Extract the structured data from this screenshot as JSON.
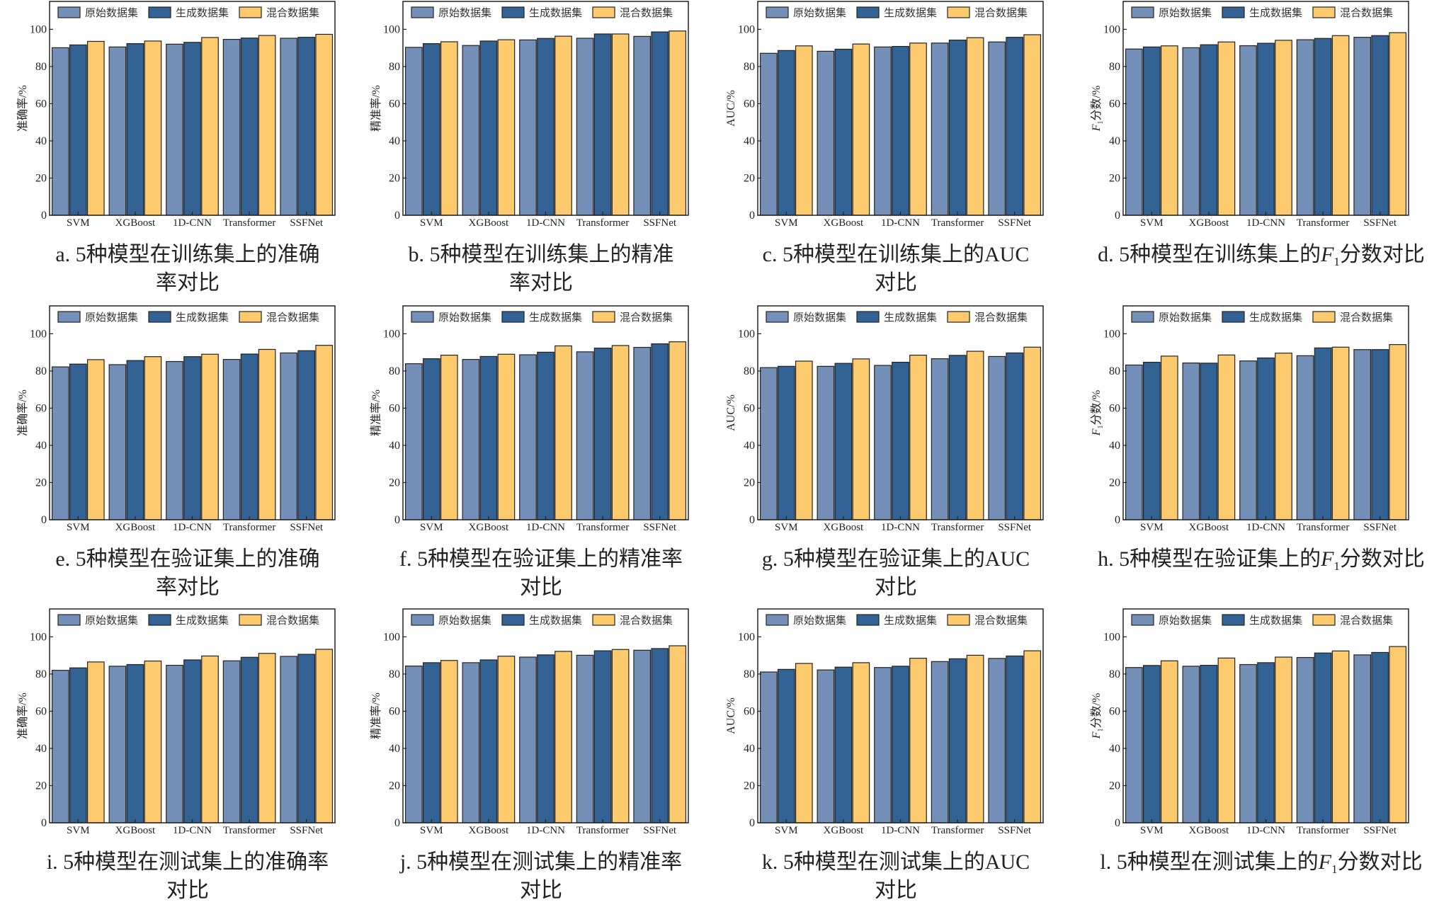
{
  "legend": [
    "原始数据集",
    "生成数据集",
    "混合数据集"
  ],
  "colors": {
    "original": "#7590b8",
    "generated": "#336394",
    "mixed": "#fdcb6e",
    "edge": "#222222"
  },
  "chart_data": [
    {
      "id": "a",
      "type": "bar",
      "ylabel": [
        {
          "t": "准确率/%"
        }
      ],
      "caption": [
        [
          {
            "t": "a. 5种模型在训练集上的准确"
          }
        ],
        [
          {
            "t": "率对比"
          }
        ]
      ],
      "categories": [
        "SVM",
        "XGBoost",
        "1D-CNN",
        "Transformer",
        "SSFNet"
      ],
      "ylim": [
        0,
        115
      ],
      "yticks": [
        0,
        20,
        40,
        60,
        80,
        100
      ],
      "series": [
        {
          "name": "原始数据集",
          "values": [
            90.1,
            90.5,
            92.0,
            94.6,
            95.2
          ]
        },
        {
          "name": "生成数据集",
          "values": [
            91.6,
            92.3,
            93.0,
            95.3,
            95.7
          ]
        },
        {
          "name": "混合数据集",
          "values": [
            93.5,
            93.7,
            95.6,
            96.7,
            97.3
          ]
        }
      ]
    },
    {
      "id": "b",
      "type": "bar",
      "ylabel": [
        {
          "t": "精准率/%"
        }
      ],
      "caption": [
        [
          {
            "t": "b. 5种模型在训练集上的精准"
          }
        ],
        [
          {
            "t": "率对比"
          }
        ]
      ],
      "categories": [
        "SVM",
        "XGBoost",
        "1D-CNN",
        "Transformer",
        "SSFNet"
      ],
      "ylim": [
        0,
        115
      ],
      "yticks": [
        0,
        20,
        40,
        60,
        80,
        100
      ],
      "series": [
        {
          "name": "原始数据集",
          "values": [
            90.3,
            91.3,
            94.3,
            95.2,
            96.2
          ]
        },
        {
          "name": "生成数据集",
          "values": [
            92.3,
            93.7,
            95.1,
            97.5,
            98.6
          ]
        },
        {
          "name": "混合数据集",
          "values": [
            93.3,
            94.4,
            96.3,
            97.5,
            99.1
          ]
        }
      ]
    },
    {
      "id": "c",
      "type": "bar",
      "ylabel": [
        {
          "t": "AUC/%"
        }
      ],
      "caption": [
        [
          {
            "t": "c. 5种模型在训练集上的AUC"
          }
        ],
        [
          {
            "t": "对比"
          }
        ]
      ],
      "categories": [
        "SVM",
        "XGBoost",
        "1D-CNN",
        "Transformer",
        "SSFNet"
      ],
      "ylim": [
        0,
        115
      ],
      "yticks": [
        0,
        20,
        40,
        60,
        80,
        100
      ],
      "series": [
        {
          "name": "原始数据集",
          "values": [
            87.1,
            88.2,
            90.5,
            92.6,
            93.2
          ]
        },
        {
          "name": "生成数据集",
          "values": [
            88.6,
            89.3,
            90.8,
            94.2,
            95.7
          ]
        },
        {
          "name": "混合数据集",
          "values": [
            91.1,
            92.1,
            92.6,
            95.5,
            97.1
          ]
        }
      ]
    },
    {
      "id": "d",
      "type": "bar",
      "ylabel": [
        {
          "t": "F",
          "s": "it"
        },
        {
          "t": "1",
          "s": "sub"
        },
        {
          "t": "分数/%"
        }
      ],
      "caption": [
        [
          {
            "t": "d. 5种模型在训练集上的"
          },
          {
            "t": "F",
            "s": "it"
          },
          {
            "t": "1",
            "s": "sub"
          },
          {
            "t": "分数对比"
          }
        ]
      ],
      "categories": [
        "SVM",
        "XGBoost",
        "1D-CNN",
        "Transformer",
        "SSFNet"
      ],
      "ylim": [
        0,
        115
      ],
      "yticks": [
        0,
        20,
        40,
        60,
        80,
        100
      ],
      "series": [
        {
          "name": "原始数据集",
          "values": [
            89.4,
            90.1,
            91.2,
            94.4,
            95.7
          ]
        },
        {
          "name": "生成数据集",
          "values": [
            90.5,
            91.7,
            92.5,
            95.1,
            96.6
          ]
        },
        {
          "name": "混合数据集",
          "values": [
            91.1,
            93.2,
            94.1,
            96.6,
            98.2
          ]
        }
      ]
    },
    {
      "id": "e",
      "type": "bar",
      "ylabel": [
        {
          "t": "准确率/%"
        }
      ],
      "caption": [
        [
          {
            "t": "e. 5种模型在验证集上的准确"
          }
        ],
        [
          {
            "t": "率对比"
          }
        ]
      ],
      "categories": [
        "SVM",
        "XGBoost",
        "1D-CNN",
        "Transformer",
        "SSFNet"
      ],
      "ylim": [
        0,
        115
      ],
      "yticks": [
        0,
        20,
        40,
        60,
        80,
        100
      ],
      "series": [
        {
          "name": "原始数据集",
          "values": [
            82.2,
            83.4,
            85.1,
            86.2,
            89.7
          ]
        },
        {
          "name": "生成数据集",
          "values": [
            83.7,
            85.6,
            87.7,
            89.1,
            90.9
          ]
        },
        {
          "name": "混合数据集",
          "values": [
            86.1,
            87.7,
            89.0,
            91.6,
            93.8
          ]
        }
      ]
    },
    {
      "id": "f",
      "type": "bar",
      "ylabel": [
        {
          "t": "精准率/%"
        }
      ],
      "caption": [
        [
          {
            "t": "f. 5种模型在验证集上的精准率"
          }
        ],
        [
          {
            "t": "对比"
          }
        ]
      ],
      "categories": [
        "SVM",
        "XGBoost",
        "1D-CNN",
        "Transformer",
        "SSFNet"
      ],
      "ylim": [
        0,
        115
      ],
      "yticks": [
        0,
        20,
        40,
        60,
        80,
        100
      ],
      "series": [
        {
          "name": "原始数据集",
          "values": [
            83.9,
            86.2,
            88.7,
            90.3,
            92.7
          ]
        },
        {
          "name": "生成数据集",
          "values": [
            86.6,
            87.8,
            90.1,
            92.3,
            94.6
          ]
        },
        {
          "name": "混合数据集",
          "values": [
            88.5,
            89.0,
            93.5,
            93.7,
            95.7
          ]
        }
      ]
    },
    {
      "id": "g",
      "type": "bar",
      "ylabel": [
        {
          "t": "AUC/%"
        }
      ],
      "caption": [
        [
          {
            "t": "g. 5种模型在验证集上的AUC"
          }
        ],
        [
          {
            "t": "对比"
          }
        ]
      ],
      "categories": [
        "SVM",
        "XGBoost",
        "1D-CNN",
        "Transformer",
        "SSFNet"
      ],
      "ylim": [
        0,
        115
      ],
      "yticks": [
        0,
        20,
        40,
        60,
        80,
        100
      ],
      "series": [
        {
          "name": "原始数据集",
          "values": [
            81.8,
            82.5,
            83.0,
            86.6,
            87.8
          ]
        },
        {
          "name": "生成数据集",
          "values": [
            82.5,
            84.1,
            84.7,
            88.4,
            89.7
          ]
        },
        {
          "name": "混合数据集",
          "values": [
            85.3,
            86.5,
            88.5,
            90.6,
            92.8
          ]
        }
      ]
    },
    {
      "id": "h",
      "type": "bar",
      "ylabel": [
        {
          "t": "F",
          "s": "it"
        },
        {
          "t": "1",
          "s": "sub"
        },
        {
          "t": "分数/%"
        }
      ],
      "caption": [
        [
          {
            "t": "h. 5种模型在验证集上的"
          },
          {
            "t": "F",
            "s": "it"
          },
          {
            "t": "1",
            "s": "sub"
          },
          {
            "t": "分数对比"
          }
        ]
      ],
      "categories": [
        "SVM",
        "XGBoost",
        "1D-CNN",
        "Transformer",
        "SSFNet"
      ],
      "ylim": [
        0,
        115
      ],
      "yticks": [
        0,
        20,
        40,
        60,
        80,
        100
      ],
      "series": [
        {
          "name": "原始数据集",
          "values": [
            83.2,
            84.3,
            85.4,
            88.2,
            91.5
          ]
        },
        {
          "name": "生成数据集",
          "values": [
            84.7,
            84.2,
            87.0,
            92.4,
            91.5
          ]
        },
        {
          "name": "混合数据集",
          "values": [
            88.0,
            88.6,
            89.6,
            92.8,
            94.2
          ]
        }
      ]
    },
    {
      "id": "i",
      "type": "bar",
      "ylabel": [
        {
          "t": "准确率/%"
        }
      ],
      "caption": [
        [
          {
            "t": "i. 5种模型在测试集上的准确率"
          }
        ],
        [
          {
            "t": "对比"
          }
        ]
      ],
      "categories": [
        "SVM",
        "XGBoost",
        "1D-CNN",
        "Transformer",
        "SSFNet"
      ],
      "ylim": [
        0,
        115
      ],
      "yticks": [
        0,
        20,
        40,
        60,
        80,
        100
      ],
      "series": [
        {
          "name": "原始数据集",
          "values": [
            82.0,
            84.2,
            84.7,
            87.1,
            89.5
          ]
        },
        {
          "name": "生成数据集",
          "values": [
            83.3,
            85.1,
            87.6,
            89.0,
            90.6
          ]
        },
        {
          "name": "混合数据集",
          "values": [
            86.5,
            87.0,
            89.7,
            91.1,
            93.3
          ]
        }
      ]
    },
    {
      "id": "j",
      "type": "bar",
      "ylabel": [
        {
          "t": "精准率/%"
        }
      ],
      "caption": [
        [
          {
            "t": "j. 5种模型在测试集上的精准率"
          }
        ],
        [
          {
            "t": "对比"
          }
        ]
      ],
      "categories": [
        "SVM",
        "XGBoost",
        "1D-CNN",
        "Transformer",
        "SSFNet"
      ],
      "ylim": [
        0,
        115
      ],
      "yticks": [
        0,
        20,
        40,
        60,
        80,
        100
      ],
      "series": [
        {
          "name": "原始数据集",
          "values": [
            84.3,
            86.1,
            89.1,
            90.1,
            92.8
          ]
        },
        {
          "name": "生成数据集",
          "values": [
            86.1,
            87.6,
            90.3,
            92.5,
            93.7
          ]
        },
        {
          "name": "混合数据集",
          "values": [
            87.3,
            89.6,
            92.2,
            93.2,
            95.2
          ]
        }
      ]
    },
    {
      "id": "k",
      "type": "bar",
      "ylabel": [
        {
          "t": "AUC/%"
        }
      ],
      "caption": [
        [
          {
            "t": "k. 5种模型在测试集上的AUC"
          }
        ],
        [
          {
            "t": "对比"
          }
        ]
      ],
      "categories": [
        "SVM",
        "XGBoost",
        "1D-CNN",
        "Transformer",
        "SSFNet"
      ],
      "ylim": [
        0,
        115
      ],
      "yticks": [
        0,
        20,
        40,
        60,
        80,
        100
      ],
      "series": [
        {
          "name": "原始数据集",
          "values": [
            81.1,
            82.2,
            83.5,
            86.7,
            88.4
          ]
        },
        {
          "name": "生成数据集",
          "values": [
            82.5,
            83.7,
            84.2,
            88.2,
            89.7
          ]
        },
        {
          "name": "混合数据集",
          "values": [
            85.7,
            86.1,
            88.5,
            90.1,
            92.5
          ]
        }
      ]
    },
    {
      "id": "l",
      "type": "bar",
      "ylabel": [
        {
          "t": "F",
          "s": "it"
        },
        {
          "t": "1",
          "s": "sub"
        },
        {
          "t": "分数/%"
        }
      ],
      "caption": [
        [
          {
            "t": "l. 5种模型在测试集上的"
          },
          {
            "t": "F",
            "s": "it"
          },
          {
            "t": "1",
            "s": "sub"
          },
          {
            "t": "分数对比"
          }
        ]
      ],
      "categories": [
        "SVM",
        "XGBoost",
        "1D-CNN",
        "Transformer",
        "SSFNet"
      ],
      "ylim": [
        0,
        115
      ],
      "yticks": [
        0,
        20,
        40,
        60,
        80,
        100
      ],
      "series": [
        {
          "name": "原始数据集",
          "values": [
            83.5,
            84.2,
            85.1,
            88.9,
            90.3
          ]
        },
        {
          "name": "生成数据集",
          "values": [
            84.6,
            84.7,
            86.1,
            91.3,
            91.6
          ]
        },
        {
          "name": "混合数据集",
          "values": [
            87.1,
            88.6,
            89.1,
            92.4,
            94.8
          ]
        }
      ]
    }
  ]
}
